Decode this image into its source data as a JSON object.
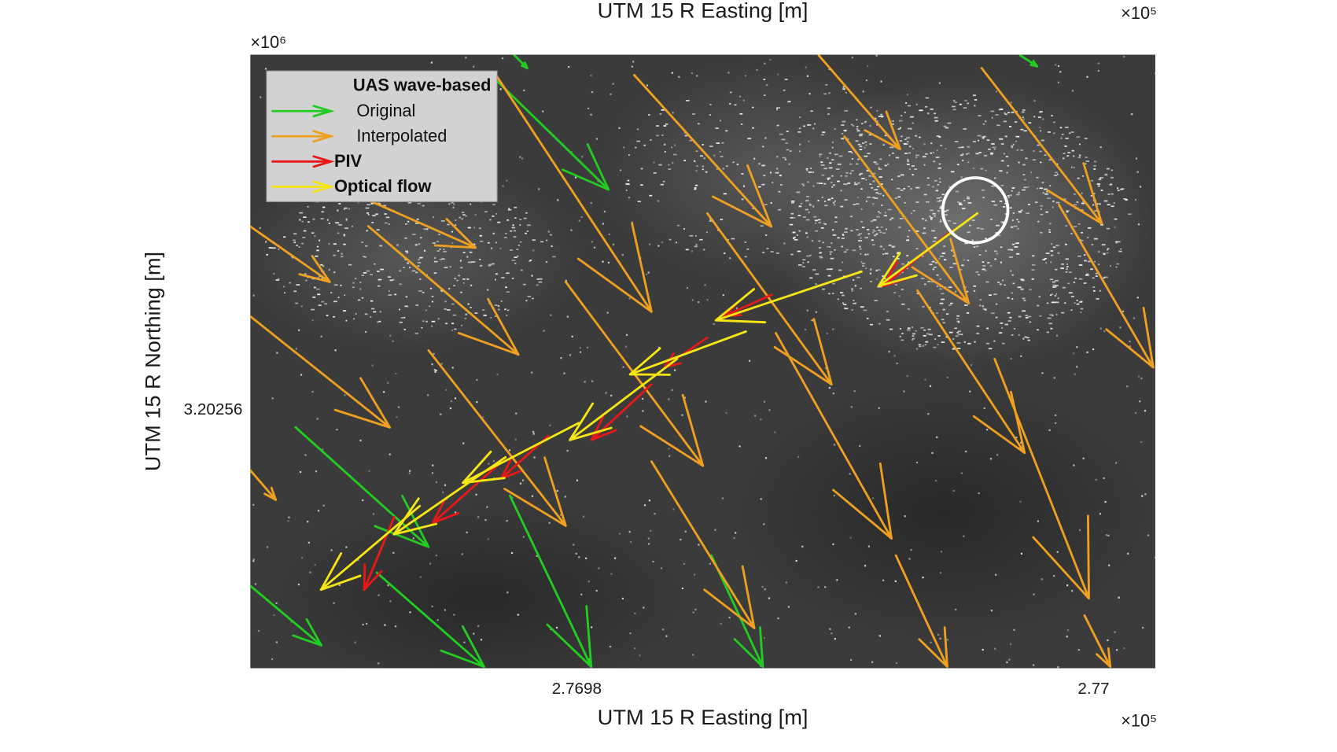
{
  "chart_data": {
    "type": "quiver",
    "x2label": "UTM 15 R Easting [m]",
    "x2_exponent": "×10⁵",
    "xlabel": "UTM 15 R Easting [m]",
    "x_exponent": "×10⁵",
    "ylabel": "UTM 15 R Northing [m]",
    "y_exponent": "×10⁶",
    "legend_title": "UAS wave-based",
    "legend": "upper left",
    "xlim": [
      276967.36,
      277002.39
    ],
    "ylim": [
      3202549.98,
      3202573.8
    ],
    "xticks": [
      {
        "value": 276980,
        "label": "2.7698"
      },
      {
        "value": 277000,
        "label": "2.77"
      }
    ],
    "yticks": [
      {
        "value": 3202560,
        "label": "3.20256"
      }
    ],
    "series": [
      {
        "name": "Original",
        "color": "#22cc22",
        "x": [
          276977.58,
          276976.91,
          276969.11,
          276967.35,
          276977.41,
          276972.26,
          276985.21,
          276997.16
        ],
        "y": [
          3202573.78,
          3202572.78,
          3202559.34,
          3202553.19,
          3202556.68,
          3202553.69,
          3202554.36,
          3202573.78
        ],
        "u": [
          0.5,
          4.32,
          5.15,
          2.76,
          3.15,
          4.15,
          1.99,
          0.66
        ],
        "v": [
          -0.5,
          -4.22,
          -4.65,
          -2.32,
          -6.64,
          -3.65,
          -4.32,
          -0.43
        ]
      },
      {
        "name": "Interpolated",
        "color": "#f0a020",
        "x": [
          276967.35,
          276967.35,
          276967.35,
          276971.6,
          276971.93,
          276974.26,
          276976.91,
          276982.22,
          276979.57,
          276985.05,
          276982.89,
          276989.36,
          276987.7,
          276990.36,
          276993.18,
          276995.67,
          276998.66,
          276992.35,
          276996.17,
          276999.65
        ],
        "y": [
          3202567.14,
          3202563.65,
          3202557.68,
          3202568.3,
          3202567.14,
          3202562.32,
          3202572.95,
          3202573.01,
          3202564.98,
          3202567.64,
          3202558.01,
          3202573.78,
          3202562.99,
          3202570.62,
          3202564.65,
          3202573.28,
          3202567.97,
          3202554.36,
          3202561.99,
          3202552.03
        ],
        "u": [
          3.09,
          5.41,
          1.0,
          4.48,
          5.81,
          5.31,
          5.98,
          5.31,
          5.31,
          4.81,
          3.98,
          3.15,
          4.48,
          4.81,
          4.15,
          4.65,
          3.65,
          1.99,
          3.65,
          1.0
        ],
        "v": [
          -2.16,
          -4.32,
          -1.16,
          -1.99,
          -4.98,
          -6.81,
          -9.13,
          -5.88,
          -7.14,
          -6.64,
          -6.47,
          -3.65,
          -7.97,
          -6.47,
          -6.31,
          -6.04,
          -6.31,
          -4.32,
          -9.3,
          -1.99
        ]
      },
      {
        "name": "PIV",
        "color": "#e81818",
        "x": [
          276994.51,
          276987.54,
          276985.05,
          276982.89,
          276978.9,
          276976.91,
          276972.93
        ],
        "y": [
          3202566.97,
          3202564.48,
          3202562.82,
          3202561.0,
          3202559.0,
          3202557.84,
          3202555.85
        ],
        "u": [
          -2.66,
          -1.83,
          -1.66,
          -2.32,
          -1.83,
          -2.49,
          -1.16
        ],
        "v": [
          -2.16,
          -0.83,
          -1.16,
          -2.16,
          -1.66,
          -2.22,
          -2.82
        ]
      },
      {
        "name": "Optical flow",
        "color": "#f5e614",
        "x": [
          276991.02,
          276995.5,
          276986.54,
          276983.88,
          276980.07,
          276977.24,
          276973.92
        ],
        "y": [
          3202565.38,
          3202567.64,
          3202563.05,
          3202561.99,
          3202559.5,
          3202558.17,
          3202556.28
        ],
        "u": [
          -5.64,
          -3.82,
          -4.48,
          -4.15,
          -4.48,
          -4.32,
          -3.82
        ],
        "v": [
          -1.89,
          -2.82,
          -1.66,
          -3.15,
          -2.32,
          -2.99,
          -3.25
        ]
      }
    ]
  }
}
